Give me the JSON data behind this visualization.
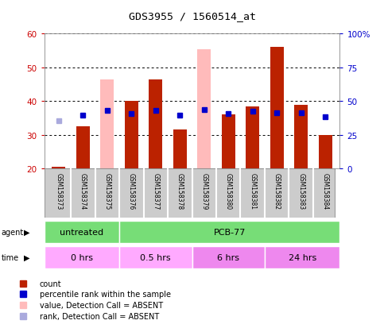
{
  "title": "GDS3955 / 1560514_at",
  "samples": [
    "GSM158373",
    "GSM158374",
    "GSM158375",
    "GSM158376",
    "GSM158377",
    "GSM158378",
    "GSM158379",
    "GSM158380",
    "GSM158381",
    "GSM158382",
    "GSM158383",
    "GSM158384"
  ],
  "count_values": [
    20.5,
    32.5,
    null,
    40,
    46.5,
    31.5,
    null,
    36,
    38.5,
    56,
    39,
    30
  ],
  "rank_values": [
    null,
    39.5,
    43,
    41,
    43,
    39.5,
    44,
    40.5,
    42.5,
    41.5,
    41.5,
    38.5
  ],
  "absent_count": [
    null,
    null,
    46.5,
    null,
    null,
    null,
    55.5,
    null,
    null,
    null,
    null,
    null
  ],
  "absent_rank": [
    35.5,
    null,
    null,
    null,
    null,
    null,
    null,
    null,
    null,
    null,
    null,
    null
  ],
  "ylim_min": 20,
  "ylim_max": 60,
  "y2lim_min": 0,
  "y2lim_max": 100,
  "yticks": [
    20,
    30,
    40,
    50,
    60
  ],
  "y2ticks": [
    0,
    25,
    50,
    75,
    100
  ],
  "y2labels": [
    "0",
    "25",
    "50",
    "75",
    "100%"
  ],
  "bar_color": "#bb2200",
  "absent_bar_color": "#ffbbbb",
  "rank_color": "#0000cc",
  "absent_rank_color": "#aaaadd",
  "bar_width": 0.55,
  "left_axis_color": "#cc0000",
  "right_axis_color": "#0000cc",
  "agent_untreated_label": "untreated",
  "agent_pcb_label": "PCB-77",
  "agent_color": "#77dd77",
  "time_labels": [
    "0 hrs",
    "0.5 hrs",
    "6 hrs",
    "24 hrs"
  ],
  "time_color_light": "#ffaaff",
  "time_color_dark": "#ee88ee",
  "sample_bg": "#cccccc",
  "legend_items": [
    {
      "color": "#bb2200",
      "label": "count"
    },
    {
      "color": "#0000cc",
      "label": "percentile rank within the sample"
    },
    {
      "color": "#ffbbbb",
      "label": "value, Detection Call = ABSENT"
    },
    {
      "color": "#aaaadd",
      "label": "rank, Detection Call = ABSENT"
    }
  ]
}
